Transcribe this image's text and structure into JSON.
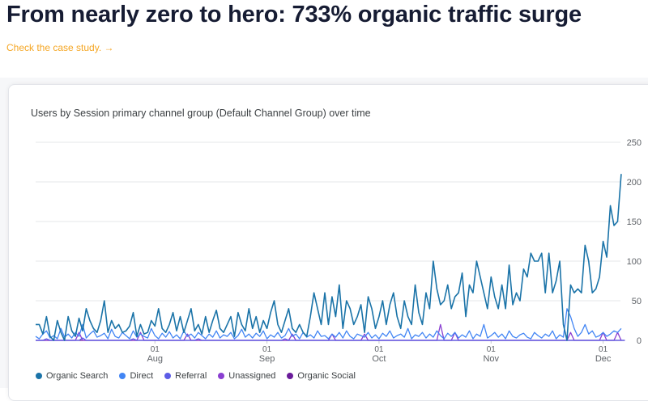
{
  "headline": "From nearly zero to hero: 733% organic traffic surge",
  "case_link": "Check the case study. →",
  "chart_data": {
    "type": "line",
    "title": "Users by Session primary channel group (Default Channel Group) over time",
    "xlabel": "",
    "ylabel": "",
    "ylim": [
      0,
      250
    ],
    "y_ticks": [
      0,
      50,
      100,
      150,
      200,
      250
    ],
    "x_range": [
      0,
      160
    ],
    "x_ticks": [
      {
        "x": 33,
        "day": "01",
        "month": "Aug"
      },
      {
        "x": 64,
        "day": "01",
        "month": "Sep"
      },
      {
        "x": 95,
        "day": "01",
        "month": "Oct"
      },
      {
        "x": 126,
        "day": "01",
        "month": "Nov"
      },
      {
        "x": 157,
        "day": "01",
        "month": "Dec"
      }
    ],
    "series": [
      {
        "name": "Organic Search",
        "color": "#1a73a8",
        "values": [
          20,
          20,
          8,
          30,
          5,
          0,
          25,
          10,
          0,
          30,
          12,
          5,
          28,
          12,
          40,
          25,
          15,
          10,
          25,
          50,
          10,
          25,
          15,
          20,
          10,
          12,
          18,
          35,
          5,
          20,
          8,
          10,
          25,
          18,
          40,
          15,
          10,
          20,
          35,
          12,
          30,
          10,
          25,
          40,
          12,
          20,
          8,
          30,
          10,
          25,
          38,
          15,
          10,
          20,
          30,
          5,
          35,
          20,
          12,
          40,
          15,
          30,
          10,
          25,
          15,
          35,
          50,
          20,
          10,
          25,
          40,
          15,
          10,
          20,
          10,
          5,
          30,
          60,
          40,
          20,
          60,
          20,
          55,
          30,
          70,
          15,
          50,
          40,
          20,
          30,
          45,
          10,
          55,
          40,
          15,
          30,
          50,
          20,
          45,
          60,
          30,
          15,
          50,
          30,
          20,
          70,
          35,
          20,
          60,
          40,
          100,
          65,
          45,
          50,
          70,
          40,
          55,
          60,
          85,
          30,
          70,
          60,
          100,
          80,
          60,
          40,
          80,
          55,
          40,
          70,
          40,
          95,
          45,
          60,
          50,
          90,
          80,
          110,
          100,
          100,
          110,
          60,
          110,
          60,
          75,
          100,
          20,
          0,
          70,
          60,
          65,
          60,
          120,
          100,
          60,
          65,
          80,
          125,
          105,
          170,
          145,
          150,
          210
        ]
      },
      {
        "name": "Direct",
        "color": "#4285f4",
        "values": [
          5,
          2,
          8,
          12,
          3,
          6,
          2,
          15,
          4,
          8,
          3,
          10,
          5,
          20,
          3,
          8,
          12,
          4,
          6,
          9,
          2,
          14,
          5,
          3,
          10,
          6,
          2,
          12,
          4,
          8,
          5,
          3,
          15,
          6,
          2,
          9,
          4,
          11,
          3,
          7,
          2,
          12,
          5,
          8,
          3,
          10,
          6,
          2,
          8,
          4,
          12,
          3,
          7,
          5,
          10,
          2,
          6,
          14,
          4,
          8,
          3,
          9,
          5,
          12,
          2,
          7,
          4,
          10,
          3,
          6,
          15,
          5,
          8,
          2,
          10,
          4,
          7,
          3,
          12,
          5,
          6,
          2,
          8,
          4,
          10,
          3,
          12,
          5,
          2,
          8,
          6,
          4,
          10,
          3,
          7,
          2,
          9,
          5,
          12,
          3,
          6,
          8,
          4,
          15,
          2,
          7,
          5,
          10,
          3,
          8,
          4,
          12,
          6,
          2,
          9,
          5,
          10,
          3,
          7,
          4,
          12,
          2,
          8,
          5,
          20,
          3,
          6,
          10,
          4,
          8,
          2,
          12,
          5,
          3,
          7,
          9,
          4,
          2,
          10,
          6,
          3,
          8,
          5,
          12,
          2,
          7,
          4,
          40,
          30,
          15,
          5,
          10,
          20,
          8,
          12,
          4,
          6,
          10,
          5,
          8,
          12,
          10,
          15
        ]
      },
      {
        "name": "Referral",
        "color": "#5c5ce6",
        "values": [
          0,
          0,
          0,
          2,
          0,
          0,
          0,
          0,
          0,
          0,
          0,
          0,
          0,
          3,
          0,
          0,
          0,
          0,
          0,
          0,
          0,
          0,
          0,
          0,
          0,
          0,
          0,
          2,
          0,
          0,
          0,
          0,
          0,
          0,
          0,
          0,
          0,
          0,
          0,
          0,
          0,
          0,
          0,
          0,
          0,
          2,
          0,
          0,
          0,
          0,
          0,
          0,
          0,
          0,
          0,
          0,
          0,
          0,
          0,
          0,
          0,
          0,
          0,
          0,
          0,
          0,
          0,
          0,
          0,
          2,
          0,
          0,
          0,
          0,
          0,
          0,
          0,
          0,
          0,
          0,
          0,
          0,
          0,
          0,
          0,
          0,
          0,
          0,
          0,
          0,
          0,
          0,
          0,
          0,
          0,
          0,
          0,
          0,
          0,
          0,
          0,
          0,
          0,
          0,
          0,
          0,
          0,
          0,
          0,
          0,
          0,
          0,
          0,
          0,
          0,
          0,
          0,
          0,
          0,
          0,
          0,
          0,
          0,
          0,
          0,
          0,
          0,
          0,
          0,
          0,
          0,
          0,
          0,
          0,
          0,
          0,
          0,
          0,
          0,
          0,
          0,
          0,
          0,
          0,
          0,
          0,
          0,
          0,
          0,
          0,
          0,
          0,
          0,
          0,
          0,
          0,
          0,
          0,
          0,
          0,
          0,
          0,
          0,
          0
        ]
      },
      {
        "name": "Unassigned",
        "color": "#8a3fd1",
        "values": [
          0,
          0,
          0,
          0,
          0,
          0,
          0,
          0,
          0,
          0,
          0,
          0,
          10,
          0,
          0,
          0,
          0,
          0,
          0,
          0,
          0,
          0,
          0,
          0,
          0,
          0,
          0,
          0,
          0,
          10,
          0,
          0,
          0,
          0,
          0,
          0,
          0,
          0,
          0,
          0,
          0,
          0,
          8,
          0,
          0,
          0,
          0,
          0,
          0,
          0,
          0,
          0,
          0,
          0,
          0,
          0,
          0,
          0,
          0,
          0,
          0,
          0,
          0,
          0,
          0,
          0,
          0,
          0,
          0,
          0,
          0,
          8,
          0,
          0,
          0,
          0,
          0,
          0,
          0,
          0,
          0,
          0,
          8,
          0,
          0,
          0,
          0,
          0,
          0,
          0,
          0,
          8,
          0,
          0,
          0,
          0,
          0,
          0,
          0,
          0,
          0,
          0,
          0,
          0,
          0,
          0,
          0,
          0,
          0,
          0,
          0,
          0,
          20,
          0,
          0,
          0,
          10,
          0,
          0,
          0,
          0,
          0,
          0,
          0,
          0,
          0,
          0,
          0,
          0,
          0,
          0,
          0,
          0,
          0,
          0,
          0,
          0,
          0,
          0,
          0,
          0,
          0,
          0,
          0,
          0,
          0,
          0,
          0,
          10,
          0,
          0,
          0,
          0,
          0,
          0,
          0,
          0,
          10,
          0,
          0,
          0,
          10,
          0
        ]
      },
      {
        "name": "Organic Social",
        "color": "#6a1b9a",
        "values": [
          0,
          0,
          0,
          0,
          0,
          0,
          0,
          0,
          0,
          0,
          0,
          0,
          0,
          0,
          0,
          0,
          0,
          0,
          0,
          0,
          0,
          0,
          0,
          0,
          0,
          0,
          0,
          0,
          0,
          0,
          0,
          0,
          0,
          0,
          0,
          0,
          0,
          0,
          0,
          0,
          0,
          0,
          0,
          0,
          0,
          0,
          0,
          0,
          0,
          0,
          0,
          0,
          0,
          0,
          0,
          0,
          0,
          0,
          0,
          0,
          0,
          0,
          0,
          0,
          0,
          0,
          0,
          0,
          0,
          0,
          0,
          0,
          0,
          0,
          0,
          0,
          0,
          0,
          0,
          0,
          0,
          0,
          0,
          0,
          0,
          0,
          0,
          0,
          0,
          0,
          0,
          0,
          0,
          0,
          0,
          0,
          0,
          0,
          0,
          0,
          0,
          0,
          0,
          0,
          0,
          0,
          0,
          0,
          0,
          0,
          0,
          0,
          0,
          0,
          0,
          0,
          0,
          0,
          0,
          0,
          0,
          0,
          0,
          0,
          0,
          0,
          0,
          0,
          0,
          0,
          0,
          0,
          0,
          0,
          0,
          0,
          0,
          0,
          0,
          0,
          0,
          0,
          0,
          0,
          0,
          0,
          0,
          0,
          0,
          0,
          0,
          0,
          0,
          0,
          0,
          0,
          0,
          0,
          0,
          0,
          0,
          0,
          0,
          0
        ]
      }
    ]
  }
}
